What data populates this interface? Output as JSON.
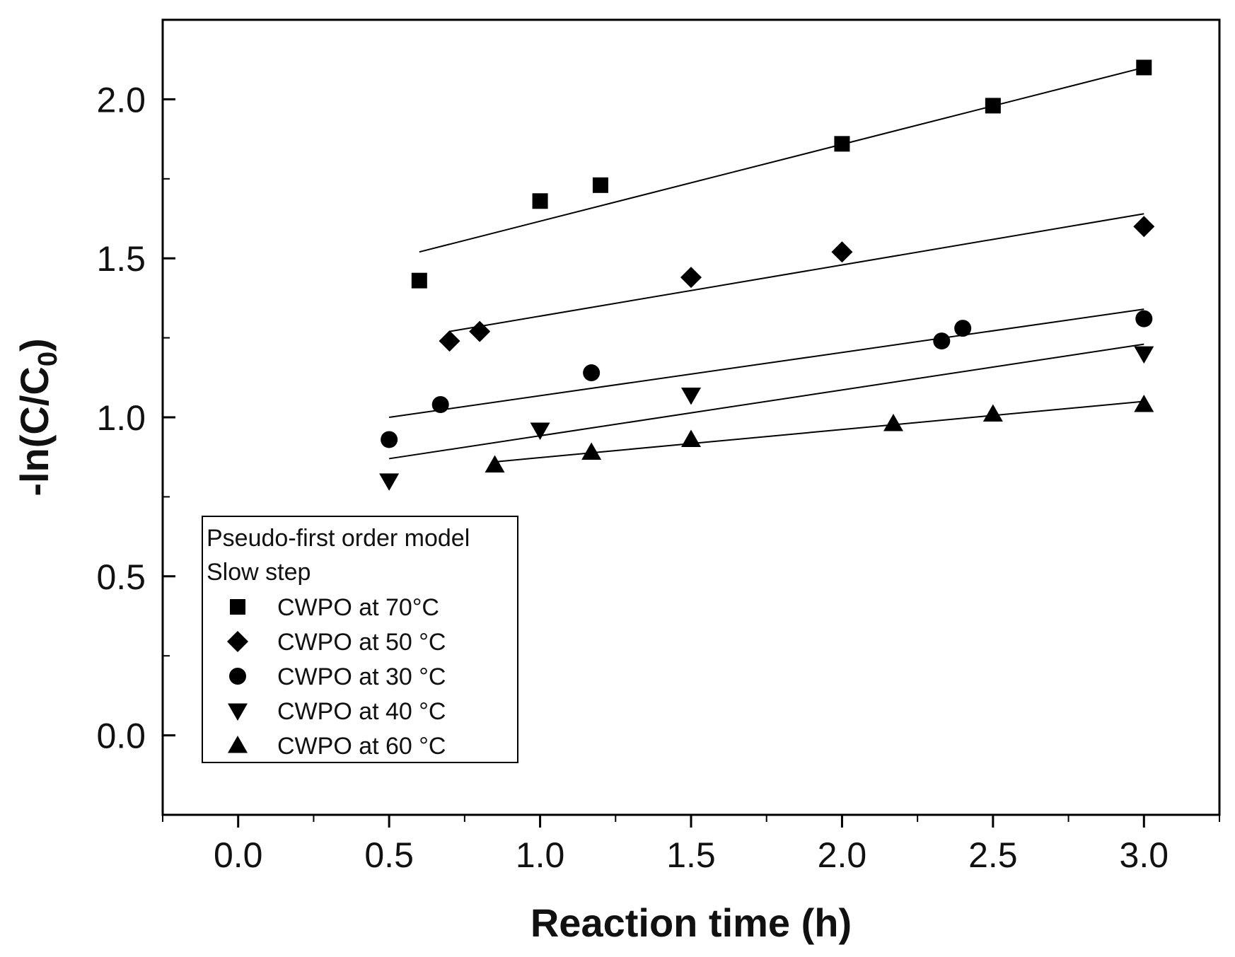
{
  "chart_data": {
    "type": "scatter",
    "title": "",
    "xlabel": "Reaction time (h)",
    "ylabel_main": "-ln(C/C",
    "ylabel_sub": "0",
    "ylabel_end": ")",
    "xlim": [
      -0.25,
      3.25
    ],
    "ylim": [
      -0.25,
      2.25
    ],
    "x_ticks": [
      {
        "value": 0.0,
        "label": "0.0"
      },
      {
        "value": 0.5,
        "label": "0.5"
      },
      {
        "value": 1.0,
        "label": "1.0"
      },
      {
        "value": 1.5,
        "label": "1.5"
      },
      {
        "value": 2.0,
        "label": "2.0"
      },
      {
        "value": 2.5,
        "label": "2.5"
      },
      {
        "value": 3.0,
        "label": "3.0"
      }
    ],
    "x_minor_ticks": [
      -0.25,
      0.25,
      0.75,
      1.25,
      1.75,
      2.25,
      2.75,
      3.25
    ],
    "y_ticks": [
      {
        "value": 0.0,
        "label": "0.0"
      },
      {
        "value": 0.5,
        "label": "0.5"
      },
      {
        "value": 1.0,
        "label": "1.0"
      },
      {
        "value": 1.5,
        "label": "1.5"
      },
      {
        "value": 2.0,
        "label": "2.0"
      }
    ],
    "y_minor_ticks": [
      -0.25,
      0.25,
      0.75,
      1.25,
      1.75,
      2.25
    ],
    "legend": {
      "position": "lower-left",
      "title_line1": "Pseudo-first order model",
      "title_line2": "Slow step"
    },
    "series": [
      {
        "name": "CWPO at 70°C",
        "marker": "square",
        "x": [
          0.6,
          1.0,
          1.2,
          2.0,
          2.5,
          3.0
        ],
        "y": [
          1.43,
          1.68,
          1.73,
          1.86,
          1.98,
          2.1
        ],
        "fit": {
          "x": [
            0.6,
            3.0
          ],
          "y": [
            1.52,
            2.1
          ]
        }
      },
      {
        "name": "CWPO at 50 °C",
        "marker": "diamond",
        "x": [
          0.7,
          0.8,
          1.5,
          2.0,
          3.0
        ],
        "y": [
          1.24,
          1.27,
          1.44,
          1.52,
          1.6
        ],
        "fit": {
          "x": [
            0.7,
            3.0
          ],
          "y": [
            1.27,
            1.64
          ]
        }
      },
      {
        "name": "CWPO at 30 °C",
        "marker": "circle",
        "x": [
          0.5,
          0.67,
          1.17,
          2.33,
          2.4,
          3.0
        ],
        "y": [
          0.93,
          1.04,
          1.14,
          1.24,
          1.28,
          1.31
        ],
        "fit": {
          "x": [
            0.5,
            3.0
          ],
          "y": [
            1.0,
            1.34
          ]
        }
      },
      {
        "name": "CWPO at 40 °C",
        "marker": "triangle-down",
        "x": [
          0.5,
          1.0,
          1.5,
          3.0
        ],
        "y": [
          0.8,
          0.96,
          1.07,
          1.2
        ],
        "fit": {
          "x": [
            0.5,
            3.0
          ],
          "y": [
            0.87,
            1.23
          ]
        }
      },
      {
        "name": "CWPO at 60 °C",
        "marker": "triangle-up",
        "x": [
          0.85,
          1.17,
          1.5,
          2.17,
          2.5,
          3.0
        ],
        "y": [
          0.85,
          0.89,
          0.93,
          0.98,
          1.01,
          1.04
        ],
        "fit": {
          "x": [
            0.85,
            3.0
          ],
          "y": [
            0.86,
            1.05
          ]
        }
      }
    ]
  }
}
